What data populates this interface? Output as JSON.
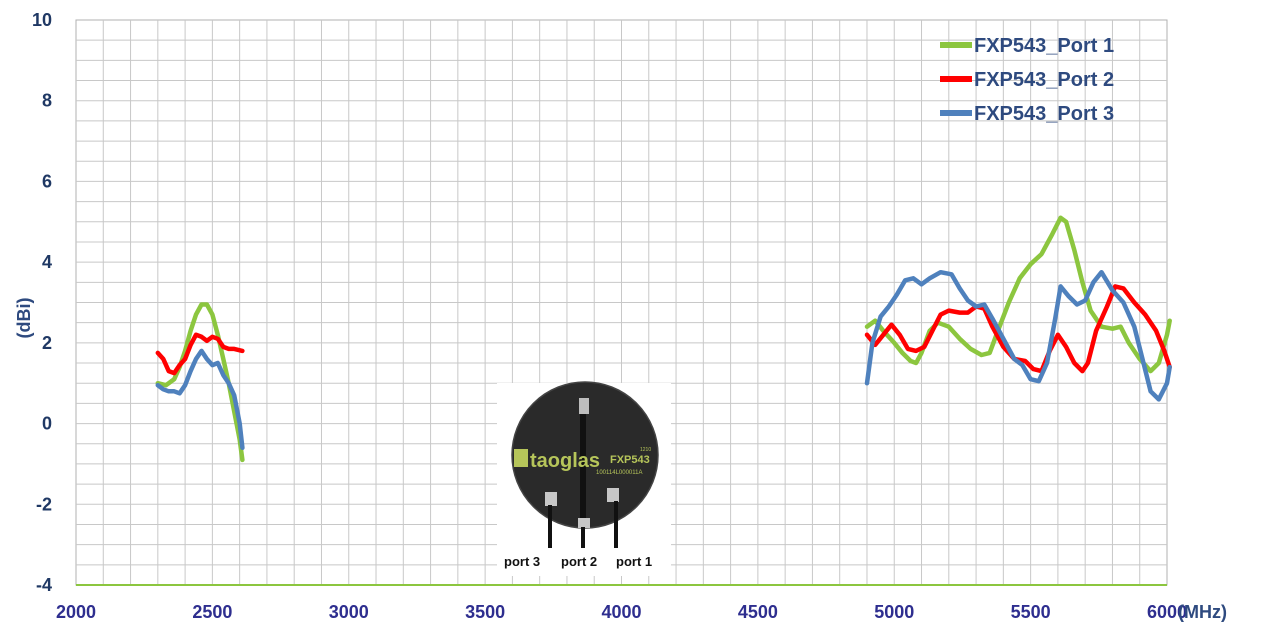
{
  "chart_data": {
    "type": "line",
    "title": "",
    "xlabel": "(MHz)",
    "ylabel": "(dBi)",
    "xlim": [
      2000,
      6000
    ],
    "ylim": [
      -4,
      10
    ],
    "x_ticks": [
      2000,
      2500,
      3000,
      3500,
      4000,
      4500,
      5000,
      5500,
      6000
    ],
    "y_ticks": [
      -4,
      -2,
      0,
      2,
      4,
      6,
      8,
      10
    ],
    "grid": true,
    "legend_position": "top-right",
    "series": [
      {
        "name": "FXP543_Port 1",
        "color": "#8cc63f",
        "segments": [
          [
            [
              2300,
              1.0
            ],
            [
              2330,
              0.95
            ],
            [
              2360,
              1.1
            ],
            [
              2380,
              1.4
            ],
            [
              2400,
              1.8
            ],
            [
              2420,
              2.3
            ],
            [
              2440,
              2.7
            ],
            [
              2460,
              2.95
            ],
            [
              2480,
              2.95
            ],
            [
              2500,
              2.7
            ],
            [
              2520,
              2.2
            ],
            [
              2540,
              1.6
            ],
            [
              2560,
              1.0
            ],
            [
              2580,
              0.3
            ],
            [
              2600,
              -0.4
            ],
            [
              2610,
              -0.9
            ]
          ],
          [
            [
              4900,
              2.4
            ],
            [
              4930,
              2.55
            ],
            [
              4960,
              2.3
            ],
            [
              5000,
              2.0
            ],
            [
              5030,
              1.75
            ],
            [
              5060,
              1.55
            ],
            [
              5080,
              1.5
            ],
            [
              5100,
              1.75
            ],
            [
              5130,
              2.3
            ],
            [
              5160,
              2.5
            ],
            [
              5200,
              2.4
            ],
            [
              5240,
              2.1
            ],
            [
              5280,
              1.85
            ],
            [
              5320,
              1.7
            ],
            [
              5350,
              1.75
            ],
            [
              5380,
              2.3
            ],
            [
              5420,
              3.0
            ],
            [
              5460,
              3.6
            ],
            [
              5500,
              3.95
            ],
            [
              5540,
              4.2
            ],
            [
              5580,
              4.7
            ],
            [
              5610,
              5.1
            ],
            [
              5630,
              5.0
            ],
            [
              5660,
              4.3
            ],
            [
              5690,
              3.5
            ],
            [
              5720,
              2.8
            ],
            [
              5760,
              2.4
            ],
            [
              5800,
              2.35
            ],
            [
              5830,
              2.4
            ],
            [
              5860,
              2.0
            ],
            [
              5900,
              1.6
            ],
            [
              5940,
              1.3
            ],
            [
              5970,
              1.5
            ],
            [
              6000,
              2.2
            ],
            [
              6010,
              2.55
            ]
          ]
        ]
      },
      {
        "name": "FXP543_Port 2",
        "color": "#ff0000",
        "segments": [
          [
            [
              2300,
              1.75
            ],
            [
              2320,
              1.6
            ],
            [
              2340,
              1.3
            ],
            [
              2360,
              1.25
            ],
            [
              2380,
              1.45
            ],
            [
              2400,
              1.6
            ],
            [
              2420,
              1.95
            ],
            [
              2440,
              2.2
            ],
            [
              2460,
              2.15
            ],
            [
              2480,
              2.05
            ],
            [
              2500,
              2.15
            ],
            [
              2520,
              2.1
            ],
            [
              2540,
              1.9
            ],
            [
              2560,
              1.85
            ],
            [
              2580,
              1.85
            ],
            [
              2610,
              1.8
            ]
          ],
          [
            [
              4900,
              2.2
            ],
            [
              4930,
              1.95
            ],
            [
              4960,
              2.2
            ],
            [
              4990,
              2.45
            ],
            [
              5020,
              2.2
            ],
            [
              5050,
              1.85
            ],
            [
              5080,
              1.8
            ],
            [
              5110,
              1.9
            ],
            [
              5140,
              2.3
            ],
            [
              5170,
              2.7
            ],
            [
              5200,
              2.8
            ],
            [
              5240,
              2.75
            ],
            [
              5270,
              2.75
            ],
            [
              5300,
              2.9
            ],
            [
              5330,
              2.85
            ],
            [
              5360,
              2.4
            ],
            [
              5400,
              1.9
            ],
            [
              5440,
              1.6
            ],
            [
              5480,
              1.55
            ],
            [
              5510,
              1.35
            ],
            [
              5540,
              1.3
            ],
            [
              5570,
              1.8
            ],
            [
              5600,
              2.2
            ],
            [
              5630,
              1.9
            ],
            [
              5660,
              1.5
            ],
            [
              5690,
              1.3
            ],
            [
              5710,
              1.5
            ],
            [
              5740,
              2.3
            ],
            [
              5780,
              2.9
            ],
            [
              5810,
              3.4
            ],
            [
              5840,
              3.35
            ],
            [
              5880,
              3.0
            ],
            [
              5920,
              2.7
            ],
            [
              5960,
              2.3
            ],
            [
              5990,
              1.8
            ],
            [
              6010,
              1.4
            ]
          ]
        ]
      },
      {
        "name": "FXP543_Port 3",
        "color": "#4f81bd",
        "segments": [
          [
            [
              2300,
              0.95
            ],
            [
              2320,
              0.85
            ],
            [
              2340,
              0.8
            ],
            [
              2360,
              0.8
            ],
            [
              2380,
              0.75
            ],
            [
              2400,
              0.95
            ],
            [
              2420,
              1.3
            ],
            [
              2440,
              1.6
            ],
            [
              2460,
              1.8
            ],
            [
              2480,
              1.6
            ],
            [
              2500,
              1.45
            ],
            [
              2520,
              1.5
            ],
            [
              2540,
              1.2
            ],
            [
              2560,
              1.0
            ],
            [
              2580,
              0.7
            ],
            [
              2600,
              0.0
            ],
            [
              2610,
              -0.6
            ]
          ],
          [
            [
              4900,
              1.0
            ],
            [
              4920,
              2.0
            ],
            [
              4950,
              2.65
            ],
            [
              4980,
              2.9
            ],
            [
              5010,
              3.2
            ],
            [
              5040,
              3.55
            ],
            [
              5070,
              3.6
            ],
            [
              5100,
              3.45
            ],
            [
              5130,
              3.6
            ],
            [
              5170,
              3.75
            ],
            [
              5210,
              3.7
            ],
            [
              5240,
              3.35
            ],
            [
              5270,
              3.05
            ],
            [
              5300,
              2.9
            ],
            [
              5330,
              2.95
            ],
            [
              5360,
              2.6
            ],
            [
              5400,
              2.1
            ],
            [
              5440,
              1.6
            ],
            [
              5470,
              1.45
            ],
            [
              5500,
              1.1
            ],
            [
              5530,
              1.05
            ],
            [
              5560,
              1.5
            ],
            [
              5590,
              2.6
            ],
            [
              5610,
              3.4
            ],
            [
              5640,
              3.15
            ],
            [
              5670,
              2.95
            ],
            [
              5700,
              3.05
            ],
            [
              5730,
              3.5
            ],
            [
              5760,
              3.75
            ],
            [
              5800,
              3.3
            ],
            [
              5840,
              3.0
            ],
            [
              5880,
              2.4
            ],
            [
              5910,
              1.6
            ],
            [
              5940,
              0.8
            ],
            [
              5970,
              0.6
            ],
            [
              6000,
              1.0
            ],
            [
              6010,
              1.4
            ]
          ]
        ]
      }
    ]
  },
  "inset": {
    "brand": "taoglas",
    "model": "FXP543",
    "serial": "100114L000011A",
    "code": "1210",
    "ports": [
      "port 3",
      "port 2",
      "port 1"
    ]
  }
}
